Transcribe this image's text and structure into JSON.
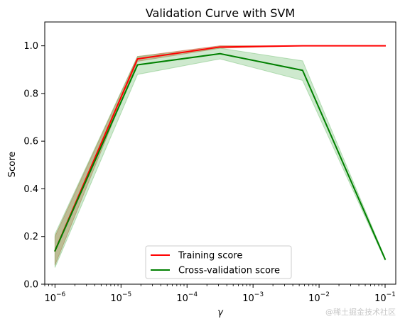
{
  "chart_data": {
    "type": "line",
    "title": "Validation Curve with SVM",
    "xlabel": "γ",
    "ylabel": "Score",
    "xscale": "log",
    "x": [
      1e-06,
      1.778e-05,
      0.0003162,
      0.005623,
      0.1
    ],
    "xlim": [
      7e-07,
      0.145
    ],
    "ylim": [
      0.0,
      1.1
    ],
    "yticks": [
      0.0,
      0.2,
      0.4,
      0.6,
      0.8,
      1.0
    ],
    "ytick_labels": [
      "0.0",
      "0.2",
      "0.4",
      "0.6",
      "0.8",
      "1.0"
    ],
    "xticks": [
      1e-06,
      1e-05,
      0.0001,
      0.001,
      0.01,
      0.1
    ],
    "xtick_labels": [
      {
        "base": "10",
        "exp": "−6"
      },
      {
        "base": "10",
        "exp": "−5"
      },
      {
        "base": "10",
        "exp": "−4"
      },
      {
        "base": "10",
        "exp": "−3"
      },
      {
        "base": "10",
        "exp": "−2"
      },
      {
        "base": "10",
        "exp": "−1"
      }
    ],
    "grid": false,
    "legend_position": "lower-center",
    "series": [
      {
        "name": "Training score",
        "color": "#ff0000",
        "band_color": "#bd5a2b",
        "values": [
          0.14,
          0.945,
          0.995,
          1.0,
          1.0
        ],
        "band_lower": [
          0.08,
          0.935,
          0.99,
          1.0,
          1.0
        ],
        "band_upper": [
          0.2,
          0.955,
          1.0,
          1.0,
          1.0
        ]
      },
      {
        "name": "Cross-validation score",
        "color": "#008000",
        "band_color": "#84c784",
        "values": [
          0.14,
          0.92,
          0.967,
          0.897,
          0.105
        ],
        "band_lower": [
          0.07,
          0.88,
          0.945,
          0.855,
          0.1
        ],
        "band_upper": [
          0.21,
          0.955,
          0.99,
          0.937,
          0.11
        ]
      }
    ]
  },
  "watermark": "@稀土掘金技术社区"
}
